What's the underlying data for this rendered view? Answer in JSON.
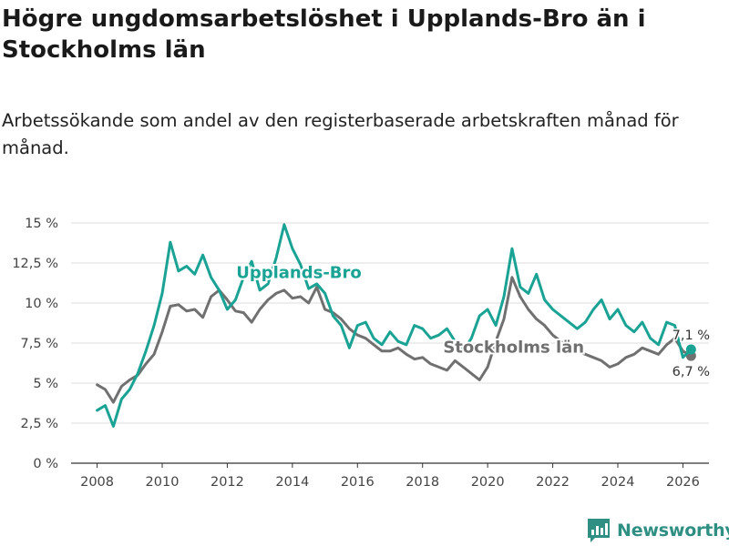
{
  "header": {
    "title": "Högre ungdomsarbetslöshet i Upplands-Bro än i Stockholms län",
    "subtitle": "Arbetssökande som andel av den registerbaserade arbetskraften månad för månad."
  },
  "colors": {
    "upplands_bro": "#1aa394",
    "stockholms_lan": "#707070",
    "grid": "#dddddd",
    "axis": "#333333",
    "brand": "#2f8f83"
  },
  "brand": {
    "name": "Newsworthy",
    "icon": "bar-chart-logo-icon"
  },
  "chart_data": {
    "type": "line",
    "title": "Högre ungdomsarbetslöshet i Upplands-Bro än i Stockholms län",
    "subtitle": "Arbetssökande som andel av den registerbaserade arbetskraften månad för månad.",
    "xlabel": "",
    "ylabel": "",
    "xlim": [
      2007.2,
      2026.8
    ],
    "ylim": [
      0,
      15
    ],
    "x_ticks": [
      2008,
      2010,
      2012,
      2014,
      2016,
      2018,
      2020,
      2022,
      2024,
      2026
    ],
    "x_tick_labels": [
      "2008",
      "2010",
      "2012",
      "2014",
      "2016",
      "2018",
      "2020",
      "2022",
      "2024",
      "2026"
    ],
    "y_ticks": [
      0,
      2.5,
      5,
      7.5,
      10,
      12.5,
      15
    ],
    "y_tick_labels": [
      "0 %",
      "2,5 %",
      "5 %",
      "7,5 %",
      "10 %",
      "12,5 %",
      "15 %"
    ],
    "grid": true,
    "series": [
      {
        "name": "Stockholms län",
        "color_key": "stockholms_lan",
        "label_x": 2020.8,
        "label_y": 6.9,
        "end_label": "6,7 %",
        "end_x": 2026.25,
        "end_y": 6.7,
        "points": [
          [
            2008.0,
            4.9
          ],
          [
            2008.25,
            4.6
          ],
          [
            2008.5,
            3.8
          ],
          [
            2008.75,
            4.8
          ],
          [
            2009.0,
            5.2
          ],
          [
            2009.25,
            5.5
          ],
          [
            2009.5,
            6.2
          ],
          [
            2009.75,
            6.8
          ],
          [
            2010.0,
            8.2
          ],
          [
            2010.25,
            9.8
          ],
          [
            2010.5,
            9.9
          ],
          [
            2010.75,
            9.5
          ],
          [
            2011.0,
            9.6
          ],
          [
            2011.25,
            9.1
          ],
          [
            2011.5,
            10.4
          ],
          [
            2011.75,
            10.8
          ],
          [
            2012.0,
            10.2
          ],
          [
            2012.25,
            9.5
          ],
          [
            2012.5,
            9.4
          ],
          [
            2012.75,
            8.8
          ],
          [
            2013.0,
            9.6
          ],
          [
            2013.25,
            10.2
          ],
          [
            2013.5,
            10.6
          ],
          [
            2013.75,
            10.8
          ],
          [
            2014.0,
            10.3
          ],
          [
            2014.25,
            10.4
          ],
          [
            2014.5,
            10.0
          ],
          [
            2014.75,
            11.0
          ],
          [
            2015.0,
            9.6
          ],
          [
            2015.25,
            9.4
          ],
          [
            2015.5,
            9.0
          ],
          [
            2015.75,
            8.4
          ],
          [
            2016.0,
            8.0
          ],
          [
            2016.25,
            7.8
          ],
          [
            2016.5,
            7.4
          ],
          [
            2016.75,
            7.0
          ],
          [
            2017.0,
            7.0
          ],
          [
            2017.25,
            7.2
          ],
          [
            2017.5,
            6.8
          ],
          [
            2017.75,
            6.5
          ],
          [
            2018.0,
            6.6
          ],
          [
            2018.25,
            6.2
          ],
          [
            2018.5,
            6.0
          ],
          [
            2018.75,
            5.8
          ],
          [
            2019.0,
            6.4
          ],
          [
            2019.25,
            6.0
          ],
          [
            2019.5,
            5.6
          ],
          [
            2019.75,
            5.2
          ],
          [
            2020.0,
            6.0
          ],
          [
            2020.25,
            7.6
          ],
          [
            2020.5,
            9.0
          ],
          [
            2020.75,
            11.6
          ],
          [
            2021.0,
            10.4
          ],
          [
            2021.25,
            9.6
          ],
          [
            2021.5,
            9.0
          ],
          [
            2021.75,
            8.6
          ],
          [
            2022.0,
            8.0
          ],
          [
            2022.25,
            7.6
          ],
          [
            2022.5,
            7.2
          ],
          [
            2022.75,
            7.0
          ],
          [
            2023.0,
            6.8
          ],
          [
            2023.25,
            6.6
          ],
          [
            2023.5,
            6.4
          ],
          [
            2023.75,
            6.0
          ],
          [
            2024.0,
            6.2
          ],
          [
            2024.25,
            6.6
          ],
          [
            2024.5,
            6.8
          ],
          [
            2024.75,
            7.2
          ],
          [
            2025.0,
            7.0
          ],
          [
            2025.25,
            6.8
          ],
          [
            2025.5,
            7.4
          ],
          [
            2025.75,
            7.8
          ],
          [
            2026.0,
            7.0
          ],
          [
            2026.25,
            6.7
          ]
        ]
      },
      {
        "name": "Upplands-Bro",
        "color_key": "upplands_bro",
        "label_x": 2014.2,
        "label_y": 11.55,
        "end_label": "7,1 %",
        "end_x": 2026.25,
        "end_y": 7.1,
        "points": [
          [
            2008.0,
            3.3
          ],
          [
            2008.25,
            3.6
          ],
          [
            2008.5,
            2.3
          ],
          [
            2008.75,
            4.0
          ],
          [
            2009.0,
            4.6
          ],
          [
            2009.25,
            5.6
          ],
          [
            2009.5,
            7.0
          ],
          [
            2009.75,
            8.6
          ],
          [
            2010.0,
            10.6
          ],
          [
            2010.25,
            13.8
          ],
          [
            2010.5,
            12.0
          ],
          [
            2010.75,
            12.3
          ],
          [
            2011.0,
            11.8
          ],
          [
            2011.25,
            13.0
          ],
          [
            2011.5,
            11.6
          ],
          [
            2011.75,
            10.8
          ],
          [
            2012.0,
            9.6
          ],
          [
            2012.25,
            10.2
          ],
          [
            2012.5,
            11.6
          ],
          [
            2012.75,
            12.6
          ],
          [
            2013.0,
            10.8
          ],
          [
            2013.25,
            11.2
          ],
          [
            2013.5,
            12.8
          ],
          [
            2013.75,
            14.9
          ],
          [
            2014.0,
            13.4
          ],
          [
            2014.25,
            12.4
          ],
          [
            2014.5,
            10.9
          ],
          [
            2014.75,
            11.2
          ],
          [
            2015.0,
            10.6
          ],
          [
            2015.25,
            9.2
          ],
          [
            2015.5,
            8.6
          ],
          [
            2015.75,
            7.2
          ],
          [
            2016.0,
            8.6
          ],
          [
            2016.25,
            8.8
          ],
          [
            2016.5,
            7.8
          ],
          [
            2016.75,
            7.4
          ],
          [
            2017.0,
            8.2
          ],
          [
            2017.25,
            7.6
          ],
          [
            2017.5,
            7.4
          ],
          [
            2017.75,
            8.6
          ],
          [
            2018.0,
            8.4
          ],
          [
            2018.25,
            7.8
          ],
          [
            2018.5,
            8.0
          ],
          [
            2018.75,
            8.4
          ],
          [
            2019.0,
            7.6
          ],
          [
            2019.25,
            7.0
          ],
          [
            2019.5,
            7.8
          ],
          [
            2019.75,
            9.2
          ],
          [
            2020.0,
            9.6
          ],
          [
            2020.25,
            8.6
          ],
          [
            2020.5,
            10.4
          ],
          [
            2020.75,
            13.4
          ],
          [
            2021.0,
            11.0
          ],
          [
            2021.25,
            10.6
          ],
          [
            2021.5,
            11.8
          ],
          [
            2021.75,
            10.2
          ],
          [
            2022.0,
            9.6
          ],
          [
            2022.25,
            9.2
          ],
          [
            2022.5,
            8.8
          ],
          [
            2022.75,
            8.4
          ],
          [
            2023.0,
            8.8
          ],
          [
            2023.25,
            9.6
          ],
          [
            2023.5,
            10.2
          ],
          [
            2023.75,
            9.0
          ],
          [
            2024.0,
            9.6
          ],
          [
            2024.25,
            8.6
          ],
          [
            2024.5,
            8.2
          ],
          [
            2024.75,
            8.8
          ],
          [
            2025.0,
            7.8
          ],
          [
            2025.25,
            7.4
          ],
          [
            2025.5,
            8.8
          ],
          [
            2025.75,
            8.6
          ],
          [
            2026.0,
            6.6
          ],
          [
            2026.25,
            7.1
          ]
        ]
      }
    ]
  }
}
